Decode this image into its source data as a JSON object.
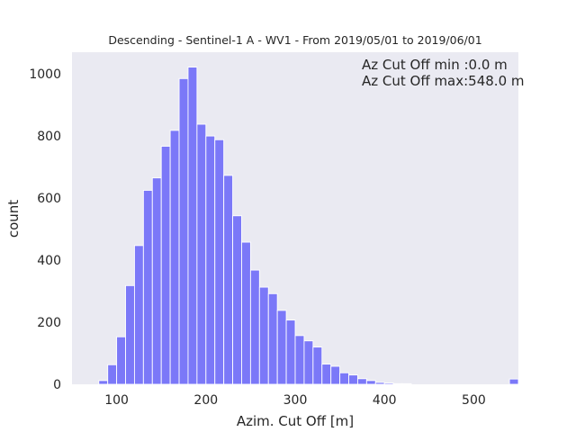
{
  "chart_data": {
    "type": "bar",
    "title": "Descending - Sentinel-1 A - WV1 - From 2019/05/01 to 2019/06/01",
    "xlabel": "Azim. Cut Off [m]",
    "ylabel": "count",
    "xlim": [
      50,
      550
    ],
    "ylim": [
      0,
      1070
    ],
    "xticks": [
      100,
      200,
      300,
      400,
      500
    ],
    "yticks": [
      0,
      200,
      400,
      600,
      800,
      1000
    ],
    "grid": false,
    "bar_color": "#7b78f8",
    "bin_width": 10,
    "bins": [
      {
        "x0": 80,
        "value": 12
      },
      {
        "x0": 90,
        "value": 63
      },
      {
        "x0": 100,
        "value": 153
      },
      {
        "x0": 110,
        "value": 318
      },
      {
        "x0": 120,
        "value": 447
      },
      {
        "x0": 130,
        "value": 625
      },
      {
        "x0": 140,
        "value": 665
      },
      {
        "x0": 150,
        "value": 767
      },
      {
        "x0": 160,
        "value": 818
      },
      {
        "x0": 170,
        "value": 985
      },
      {
        "x0": 180,
        "value": 1022
      },
      {
        "x0": 190,
        "value": 838
      },
      {
        "x0": 200,
        "value": 800
      },
      {
        "x0": 210,
        "value": 788
      },
      {
        "x0": 220,
        "value": 673
      },
      {
        "x0": 230,
        "value": 543
      },
      {
        "x0": 240,
        "value": 458
      },
      {
        "x0": 250,
        "value": 368
      },
      {
        "x0": 260,
        "value": 313
      },
      {
        "x0": 270,
        "value": 292
      },
      {
        "x0": 280,
        "value": 238
      },
      {
        "x0": 290,
        "value": 207
      },
      {
        "x0": 300,
        "value": 157
      },
      {
        "x0": 310,
        "value": 140
      },
      {
        "x0": 320,
        "value": 120
      },
      {
        "x0": 330,
        "value": 65
      },
      {
        "x0": 340,
        "value": 58
      },
      {
        "x0": 350,
        "value": 37
      },
      {
        "x0": 360,
        "value": 30
      },
      {
        "x0": 370,
        "value": 18
      },
      {
        "x0": 380,
        "value": 12
      },
      {
        "x0": 390,
        "value": 6
      },
      {
        "x0": 400,
        "value": 4
      },
      {
        "x0": 410,
        "value": 2
      },
      {
        "x0": 420,
        "value": 2
      },
      {
        "x0": 540,
        "value": 17
      }
    ],
    "annotations": [
      "Az Cut Off min :0.0 m",
      "Az Cut Off max:548.0 m"
    ]
  }
}
